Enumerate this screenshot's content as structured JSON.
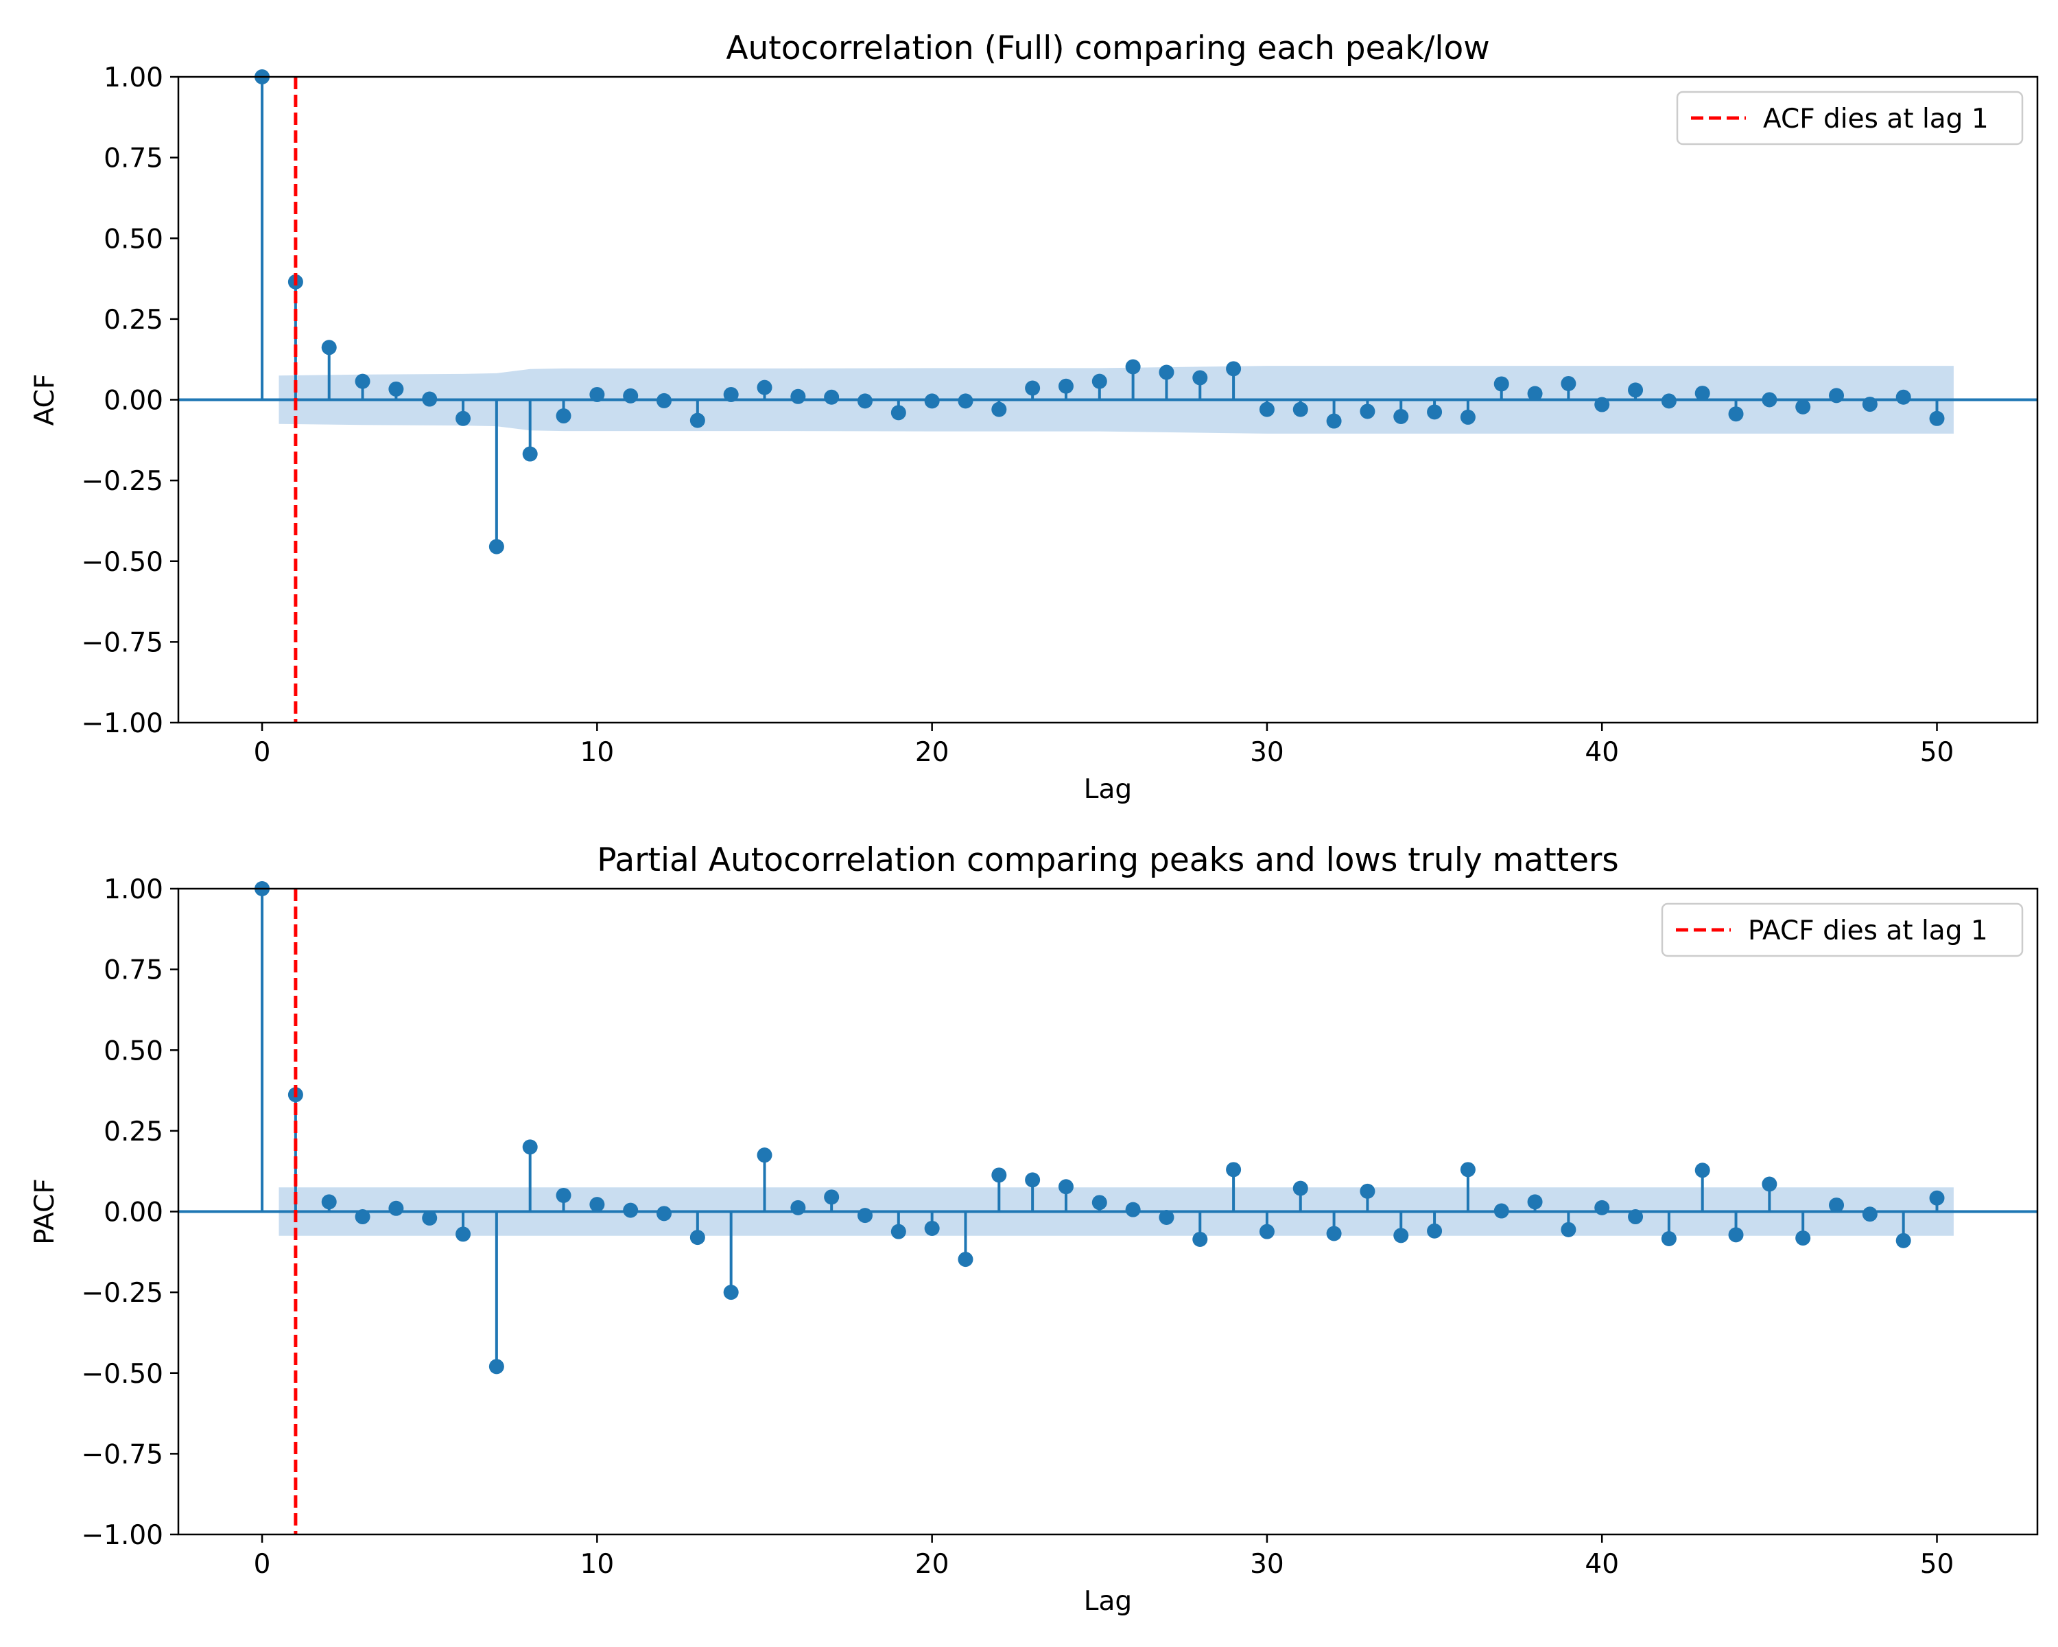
{
  "chart_data": [
    {
      "type": "stem",
      "title": "Autocorrelation (Full) comparing each peak/low",
      "xlabel": "Lag",
      "ylabel": "ACF",
      "xlim": [
        -2.5,
        53
      ],
      "ylim": [
        -1.0,
        1.0
      ],
      "xticks": [
        "0",
        "10",
        "20",
        "30",
        "40",
        "50"
      ],
      "yticks": [
        "1.00",
        "0.75",
        "0.50",
        "0.25",
        "0.00",
        "−0.25",
        "−0.50",
        "−0.75",
        "−1.00"
      ],
      "grid": false,
      "lags": [
        0,
        1,
        2,
        3,
        4,
        5,
        6,
        7,
        8,
        9,
        10,
        11,
        12,
        13,
        14,
        15,
        16,
        17,
        18,
        19,
        20,
        21,
        22,
        23,
        24,
        25,
        26,
        27,
        28,
        29,
        30,
        31,
        32,
        33,
        34,
        35,
        36,
        37,
        38,
        39,
        40,
        41,
        42,
        43,
        44,
        45,
        46,
        47,
        48,
        49,
        50
      ],
      "values": [
        1.0,
        0.365,
        0.162,
        0.057,
        0.033,
        0.002,
        -0.058,
        -0.455,
        -0.168,
        -0.05,
        0.016,
        0.012,
        -0.003,
        -0.064,
        0.016,
        0.038,
        0.01,
        0.008,
        -0.004,
        -0.04,
        -0.004,
        -0.004,
        -0.03,
        0.036,
        0.042,
        0.057,
        0.102,
        0.085,
        0.068,
        0.096,
        -0.03,
        -0.03,
        -0.066,
        -0.036,
        -0.052,
        -0.038,
        -0.054,
        0.049,
        0.019,
        0.05,
        -0.015,
        0.03,
        -0.004,
        0.02,
        -0.044,
        0.0,
        -0.022,
        0.013,
        -0.014,
        0.008,
        -0.058
      ],
      "conf_band": {
        "lags": [
          0.5,
          3,
          6,
          7,
          8,
          9,
          10,
          15,
          20,
          25,
          30,
          35,
          40,
          45,
          50.5
        ],
        "upper": [
          0.075,
          0.078,
          0.08,
          0.082,
          0.095,
          0.097,
          0.097,
          0.097,
          0.098,
          0.098,
          0.105,
          0.105,
          0.105,
          0.105,
          0.105
        ],
        "lower": [
          -0.075,
          -0.078,
          -0.08,
          -0.082,
          -0.095,
          -0.097,
          -0.097,
          -0.097,
          -0.098,
          -0.098,
          -0.105,
          -0.105,
          -0.105,
          -0.105,
          -0.105
        ]
      },
      "vline": {
        "x": 1,
        "label": "ACF dies at lag 1",
        "color": "#ff0000"
      },
      "legend_position": "top-right",
      "colors": {
        "stem": "#1f77b4",
        "band": "#c6dbef",
        "zero_line": "#1f77b4"
      }
    },
    {
      "type": "stem",
      "title": "Partial Autocorrelation comparing peaks and lows truly matters",
      "xlabel": "Lag",
      "ylabel": "PACF",
      "xlim": [
        -2.5,
        53
      ],
      "ylim": [
        -1.0,
        1.0
      ],
      "xticks": [
        "0",
        "10",
        "20",
        "30",
        "40",
        "50"
      ],
      "yticks": [
        "1.00",
        "0.75",
        "0.50",
        "0.25",
        "0.00",
        "−0.25",
        "−0.50",
        "−0.75",
        "−1.00"
      ],
      "grid": false,
      "lags": [
        0,
        1,
        2,
        3,
        4,
        5,
        6,
        7,
        8,
        9,
        10,
        11,
        12,
        13,
        14,
        15,
        16,
        17,
        18,
        19,
        20,
        21,
        22,
        23,
        24,
        25,
        26,
        27,
        28,
        29,
        30,
        31,
        32,
        33,
        34,
        35,
        36,
        37,
        38,
        39,
        40,
        41,
        42,
        43,
        44,
        45,
        46,
        47,
        48,
        49,
        50
      ],
      "values": [
        1.0,
        0.362,
        0.03,
        -0.016,
        0.01,
        -0.02,
        -0.07,
        -0.48,
        0.2,
        0.05,
        0.022,
        0.004,
        -0.006,
        -0.08,
        -0.25,
        0.175,
        0.012,
        0.045,
        -0.012,
        -0.062,
        -0.052,
        -0.148,
        0.113,
        0.098,
        0.077,
        0.028,
        0.006,
        -0.018,
        -0.086,
        0.13,
        -0.062,
        0.072,
        -0.068,
        0.063,
        -0.074,
        -0.06,
        0.13,
        0.002,
        0.03,
        -0.056,
        0.012,
        -0.016,
        -0.084,
        0.128,
        -0.072,
        0.085,
        -0.082,
        0.02,
        -0.008,
        -0.09,
        0.042
      ],
      "conf_band": {
        "lags": [
          0.5,
          50.5
        ],
        "upper": [
          0.075,
          0.075
        ],
        "lower": [
          -0.075,
          -0.075
        ]
      },
      "vline": {
        "x": 1,
        "label": "PACF dies at lag 1",
        "color": "#ff0000"
      },
      "legend_position": "top-right",
      "colors": {
        "stem": "#1f77b4",
        "band": "#c6dbef",
        "zero_line": "#1f77b4"
      }
    }
  ]
}
